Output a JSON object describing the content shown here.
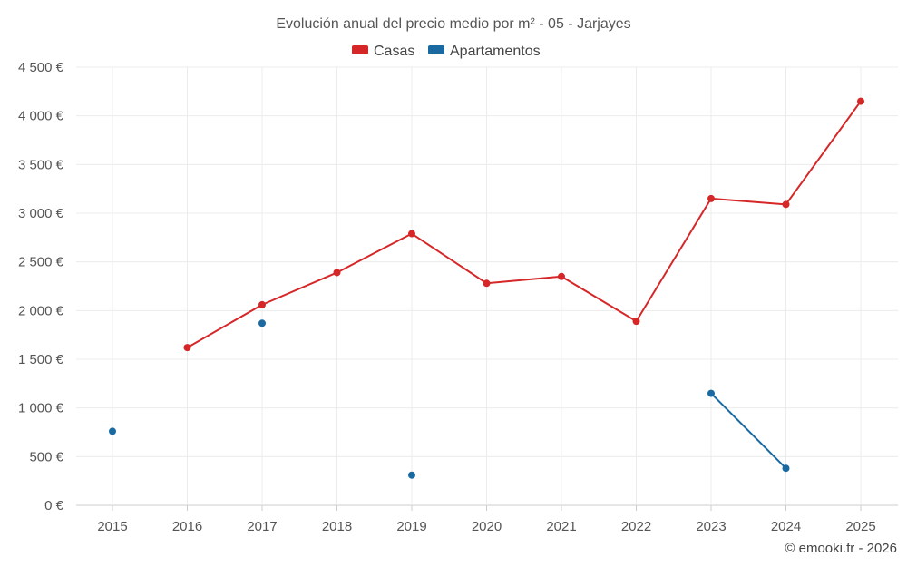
{
  "chart_data": {
    "type": "line",
    "title": "Evolución anual del precio medio por m² - 05 - Jarjayes",
    "categories": [
      "2015",
      "2016",
      "2017",
      "2018",
      "2019",
      "2020",
      "2021",
      "2022",
      "2023",
      "2024",
      "2025"
    ],
    "series": [
      {
        "name": "Casas",
        "color": "#d62728",
        "values": [
          null,
          1620,
          2060,
          2390,
          2790,
          2280,
          2350,
          1890,
          3150,
          3090,
          4150
        ]
      },
      {
        "name": "Apartamentos",
        "color": "#1a6aa1",
        "values": [
          760,
          null,
          1870,
          null,
          310,
          null,
          null,
          null,
          1150,
          380,
          null
        ]
      }
    ],
    "y_ticks": [
      "0 €",
      "500 €",
      "1 000 €",
      "1 500 €",
      "2 000 €",
      "2 500 €",
      "3 000 €",
      "3 500 €",
      "4 000 €",
      "4 500 €"
    ],
    "ylim": [
      0,
      4500
    ],
    "grid": true,
    "legend_position": "top-center",
    "xlabel": "",
    "ylabel": ""
  },
  "footer": {
    "credit": "© emooki.fr - 2026"
  }
}
